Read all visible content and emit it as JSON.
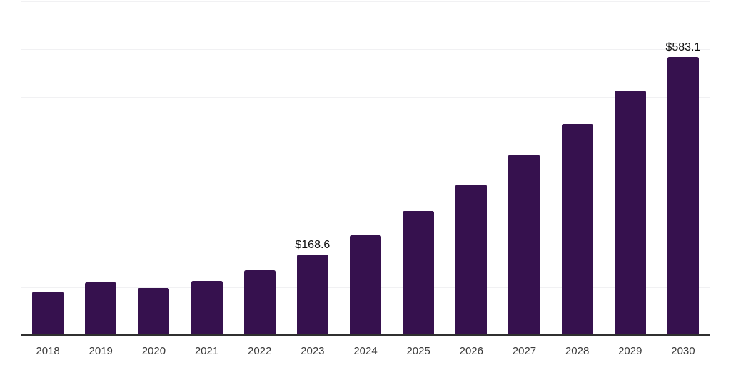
{
  "chart_data": {
    "type": "bar",
    "title": "",
    "xlabel": "",
    "ylabel": "",
    "categories": [
      "2018",
      "2019",
      "2020",
      "2021",
      "2022",
      "2023",
      "2024",
      "2025",
      "2026",
      "2027",
      "2028",
      "2029",
      "2030"
    ],
    "values": [
      91,
      110,
      99,
      113,
      136,
      168.6,
      210,
      261,
      316,
      379,
      443,
      513,
      583.1
    ],
    "data_labels": [
      "",
      "",
      "",
      "",
      "",
      "$168.6",
      "",
      "",
      "",
      "",
      "",
      "",
      "$583.1"
    ],
    "value_prefix": "$",
    "ylim": [
      0,
      700
    ],
    "grid": true,
    "grid_step": 100,
    "y_tick_labels_shown": false,
    "legend": false,
    "colors": {
      "bar": "#36114E",
      "gridline": "#F1F1F3",
      "axis_line": "#303030",
      "tick_label": "#3B3B3B",
      "data_label": "#0F0F0F",
      "background": "#FFFFFF"
    }
  }
}
